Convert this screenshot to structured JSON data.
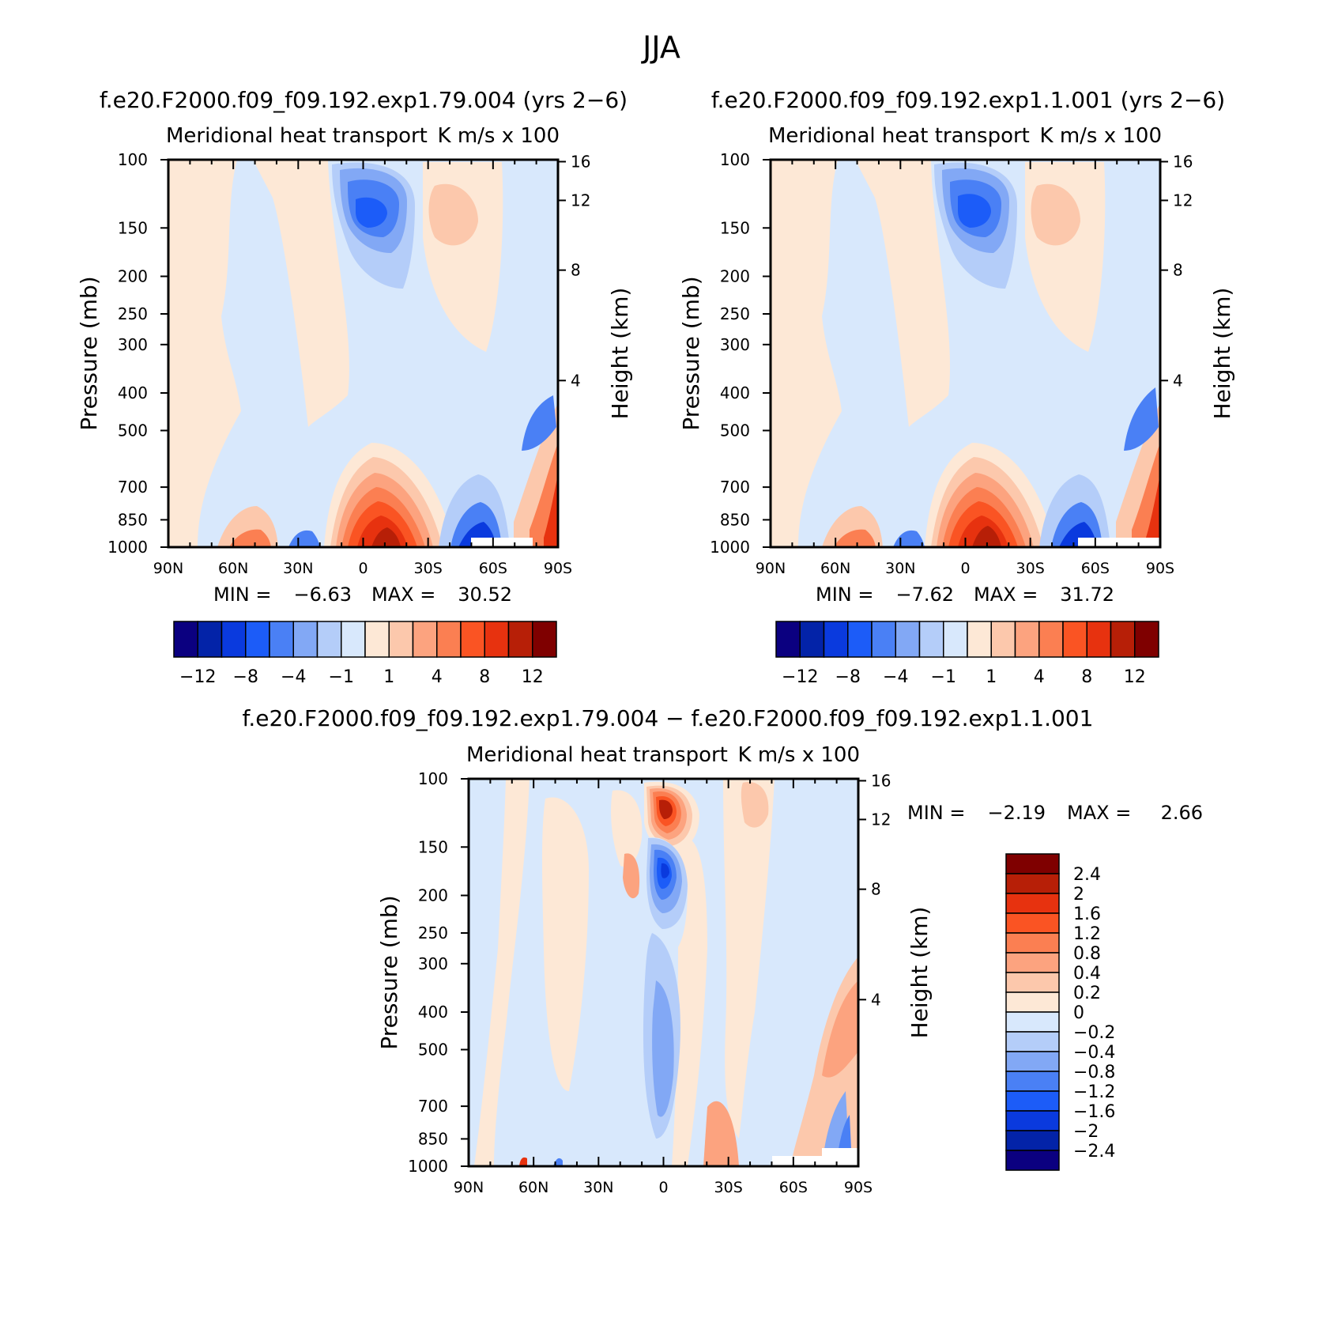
{
  "figure_title": "JJA",
  "colors": {
    "neg": [
      "#0b0080",
      "#0323a8",
      "#0a3ade",
      "#1c5cf8",
      "#4a80f5",
      "#82a8f5",
      "#b4cdf9",
      "#d8e8fc"
    ],
    "pos": [
      "#fde8d6",
      "#fcc8ac",
      "#fca37f",
      "#fb7f52",
      "#fa5423",
      "#e7320f",
      "#b71f07",
      "#7f0000"
    ]
  },
  "chart_data": [
    {
      "type": "contour",
      "case_label": "f.e20.F2000.f09_f09.192.exp1.79.004 (yrs 2−6)",
      "title_left": "Meridional heat transport",
      "title_right": "K m/s x 100",
      "ylabel": "Pressure (mb)",
      "ylabel_right": "Height (km)",
      "x_ticks": [
        "90N",
        "60N",
        "30N",
        "0",
        "30S",
        "60S",
        "90S"
      ],
      "y_ticks": [
        "100",
        "150",
        "200",
        "250",
        "300",
        "400",
        "500",
        "700",
        "850",
        "1000"
      ],
      "y_right_ticks": [
        "16",
        "12",
        "8",
        "4"
      ],
      "xlim": [
        90,
        -90
      ],
      "ylim": [
        100,
        1000
      ],
      "min_label": "MIN =",
      "min": "−6.63",
      "max_label": "MAX =",
      "max": "30.52",
      "colorbar_labels": [
        "−12",
        "−8",
        "−4",
        "−1",
        "1",
        "4",
        "8",
        "12"
      ]
    },
    {
      "type": "contour",
      "case_label": "f.e20.F2000.f09_f09.192.exp1.1.001 (yrs 2−6)",
      "title_left": "Meridional heat transport",
      "title_right": "K m/s x 100",
      "ylabel": "Pressure (mb)",
      "ylabel_right": "Height (km)",
      "x_ticks": [
        "90N",
        "60N",
        "30N",
        "0",
        "30S",
        "60S",
        "90S"
      ],
      "y_ticks": [
        "100",
        "150",
        "200",
        "250",
        "300",
        "400",
        "500",
        "700",
        "850",
        "1000"
      ],
      "y_right_ticks": [
        "16",
        "12",
        "8",
        "4"
      ],
      "xlim": [
        90,
        -90
      ],
      "ylim": [
        100,
        1000
      ],
      "min_label": "MIN =",
      "min": "−7.62",
      "max_label": "MAX =",
      "max": "31.72",
      "colorbar_labels": [
        "−12",
        "−8",
        "−4",
        "−1",
        "1",
        "4",
        "8",
        "12"
      ]
    },
    {
      "type": "contour",
      "case_label": "f.e20.F2000.f09_f09.192.exp1.79.004 − f.e20.F2000.f09_f09.192.exp1.1.001",
      "title_left": "Meridional heat transport",
      "title_right": "K m/s x 100",
      "ylabel": "Pressure (mb)",
      "ylabel_right": "Height (km)",
      "x_ticks": [
        "90N",
        "60N",
        "30N",
        "0",
        "30S",
        "60S",
        "90S"
      ],
      "y_ticks": [
        "100",
        "150",
        "200",
        "250",
        "300",
        "400",
        "500",
        "700",
        "850",
        "1000"
      ],
      "y_right_ticks": [
        "16",
        "12",
        "8",
        "4"
      ],
      "xlim": [
        90,
        -90
      ],
      "ylim": [
        100,
        1000
      ],
      "min_label": "MIN =",
      "min": "−2.19",
      "max_label": "MAX =",
      "max": "2.66",
      "colorbar_labels": [
        "2.4",
        "2",
        "1.6",
        "1.2",
        "0.8",
        "0.4",
        "0.2",
        "0",
        "−0.2",
        "−0.4",
        "−0.8",
        "−1.2",
        "−1.6",
        "−2",
        "−2.4"
      ]
    }
  ]
}
